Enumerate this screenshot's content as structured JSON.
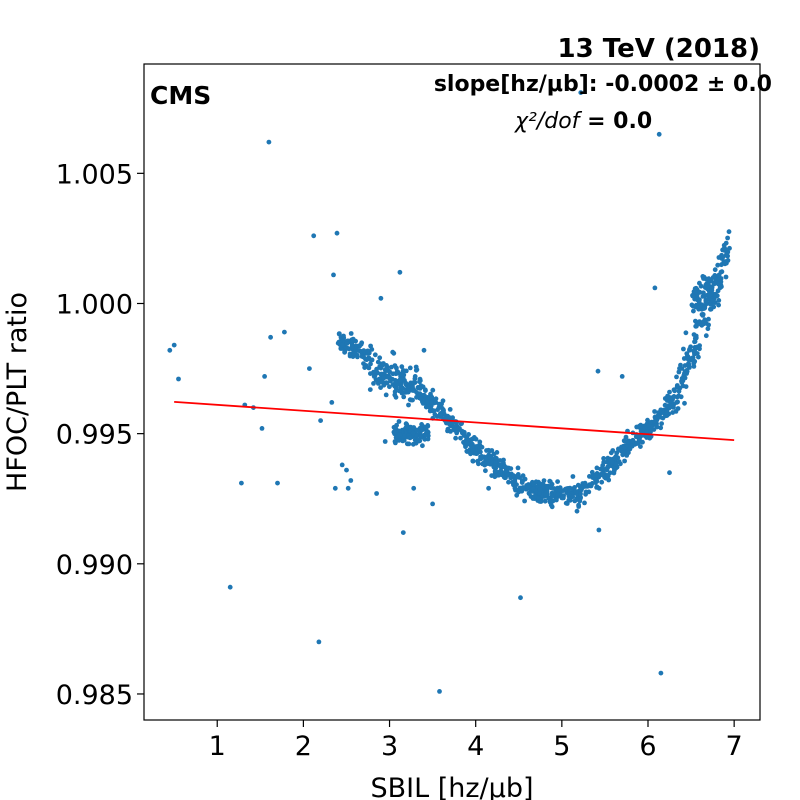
{
  "chart_data": {
    "type": "scatter",
    "energy_label": "13 TeV (2018)",
    "experiment_label": "CMS",
    "fit_slope_text": "slope[hz/μb]: -0.0002 ± 0.0",
    "chi2_label": "χ²/dof",
    "chi2_value": " = 0.0",
    "xlabel": "SBIL [hz/μb]",
    "ylabel": "HFOC/PLT ratio",
    "xlim": [
      0.15,
      7.3
    ],
    "ylim": [
      0.984,
      1.0092
    ],
    "xticks": [
      1,
      2,
      3,
      4,
      5,
      6,
      7
    ],
    "yticks": [
      0.985,
      0.99,
      0.995,
      1.0,
      1.005
    ],
    "ytick_labels": [
      "0.985",
      "0.990",
      "0.995",
      "1.000",
      "1.005"
    ],
    "xtick_labels": [
      "1",
      "2",
      "3",
      "4",
      "5",
      "6",
      "7"
    ],
    "point_color": "#1f77b4",
    "fit_color": "#ff0000",
    "fit_line": {
      "x": [
        0.5,
        7.0
      ],
      "y": [
        0.99622,
        0.99475
      ]
    },
    "trend": [
      [
        2.4,
        0.9985
      ],
      [
        2.6,
        0.9983
      ],
      [
        2.75,
        0.9979
      ],
      [
        2.85,
        0.9973
      ],
      [
        3.1,
        0.9971
      ],
      [
        3.3,
        0.9968
      ],
      [
        3.5,
        0.9962
      ],
      [
        3.7,
        0.9955
      ],
      [
        3.9,
        0.9947
      ],
      [
        4.05,
        0.9942
      ],
      [
        4.3,
        0.9936
      ],
      [
        4.5,
        0.993
      ],
      [
        4.7,
        0.9928
      ],
      [
        5.0,
        0.9927
      ],
      [
        5.2,
        0.9926
      ],
      [
        5.4,
        0.9933
      ],
      [
        5.6,
        0.9939
      ],
      [
        5.8,
        0.9947
      ],
      [
        6.0,
        0.9952
      ],
      [
        6.15,
        0.9957
      ],
      [
        6.3,
        0.9963
      ],
      [
        6.45,
        0.9975
      ],
      [
        6.6,
        0.9988
      ],
      [
        6.75,
        1.0003
      ],
      [
        6.95,
        1.0025
      ]
    ],
    "outliers": [
      [
        0.45,
        0.9982
      ],
      [
        0.5,
        0.9984
      ],
      [
        0.55,
        0.9971
      ],
      [
        1.15,
        0.9891
      ],
      [
        1.28,
        0.9931
      ],
      [
        1.32,
        0.9961
      ],
      [
        1.42,
        0.996
      ],
      [
        1.52,
        0.9952
      ],
      [
        1.55,
        0.9972
      ],
      [
        1.6,
        1.0062
      ],
      [
        1.62,
        0.9987
      ],
      [
        1.7,
        0.9931
      ],
      [
        1.78,
        0.9989
      ],
      [
        2.07,
        0.9975
      ],
      [
        2.12,
        1.0026
      ],
      [
        2.18,
        0.987
      ],
      [
        2.2,
        0.9955
      ],
      [
        2.33,
        0.9962
      ],
      [
        2.35,
        1.0011
      ],
      [
        2.37,
        0.9929
      ],
      [
        2.39,
        1.0027
      ],
      [
        2.45,
        0.9938
      ],
      [
        2.5,
        0.9936
      ],
      [
        2.55,
        0.9932
      ],
      [
        2.52,
        0.9929
      ],
      [
        2.85,
        0.9927
      ],
      [
        2.9,
        1.0002
      ],
      [
        3.12,
        1.0012
      ],
      [
        3.16,
        0.9912
      ],
      [
        3.22,
        0.9961
      ],
      [
        3.28,
        0.9929
      ],
      [
        3.5,
        0.9923
      ],
      [
        3.58,
        0.9851
      ],
      [
        4.52,
        0.9887
      ],
      [
        5.22,
        1.0081
      ],
      [
        5.43,
        0.9913
      ],
      [
        5.42,
        0.9974
      ],
      [
        5.7,
        0.9972
      ],
      [
        6.08,
        1.0006
      ],
      [
        6.13,
        1.0065
      ],
      [
        6.15,
        0.9858
      ],
      [
        6.25,
        0.9935
      ],
      [
        3.4,
        0.9982
      ],
      [
        2.95,
        0.9947
      ],
      [
        4.15,
        0.9929
      ]
    ]
  }
}
